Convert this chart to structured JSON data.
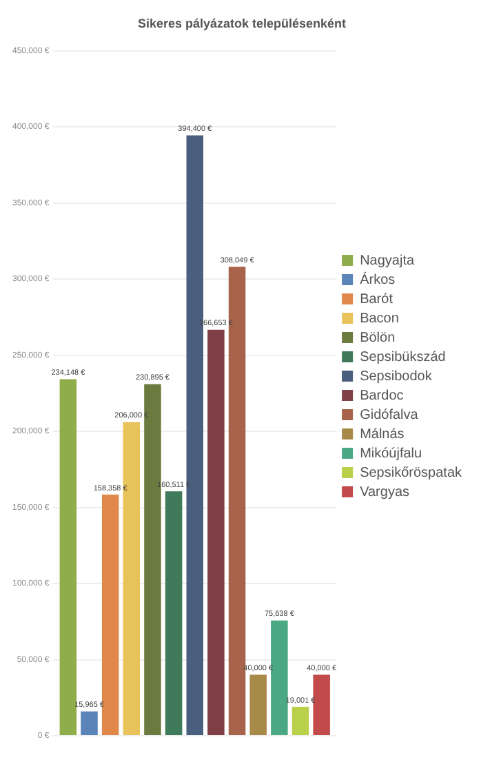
{
  "chart_data": {
    "type": "bar",
    "title": "Sikeres pályázatok településenként",
    "categories": [
      null
    ],
    "series": [
      {
        "name": "Nagyajta",
        "color": "#8fad4a",
        "values": [
          234148
        ],
        "value_labels": [
          "234,148 €"
        ]
      },
      {
        "name": "Árkos",
        "color": "#5b84b8",
        "values": [
          15965
        ],
        "value_labels": [
          "15,965 €"
        ]
      },
      {
        "name": "Barót",
        "color": "#e0874a",
        "values": [
          158358
        ],
        "value_labels": [
          "158,358 €"
        ]
      },
      {
        "name": "Bacon",
        "color": "#e8c25a",
        "values": [
          206000
        ],
        "value_labels": [
          "206,000 €"
        ]
      },
      {
        "name": "Bölön",
        "color": "#6b7a3e",
        "values": [
          230895
        ],
        "value_labels": [
          "230,895 €"
        ]
      },
      {
        "name": "Sepsibükszád",
        "color": "#3f7a5a",
        "values": [
          160511
        ],
        "value_labels": [
          "160,511 €"
        ]
      },
      {
        "name": "Sepsibodok",
        "color": "#4a5e7e",
        "values": [
          394400
        ],
        "value_labels": [
          "394,400 €"
        ]
      },
      {
        "name": "Bardoc",
        "color": "#7e4046",
        "values": [
          266653
        ],
        "value_labels": [
          "266,653 €"
        ]
      },
      {
        "name": "Gidófalva",
        "color": "#a8644a",
        "values": [
          308049
        ],
        "value_labels": [
          "308,049 €"
        ]
      },
      {
        "name": "Málnás",
        "color": "#a88a48",
        "values": [
          40000
        ],
        "value_labels": [
          "40,000 €"
        ]
      },
      {
        "name": "Mikóújfalu",
        "color": "#4aa884",
        "values": [
          75638
        ],
        "value_labels": [
          "75,638 €"
        ]
      },
      {
        "name": "Sepsikőröspatak",
        "color": "#b8d04a",
        "values": [
          19001
        ],
        "value_labels": [
          "19,001 €"
        ]
      },
      {
        "name": "Vargyas",
        "color": "#c24a4a",
        "values": [
          40000
        ],
        "value_labels": [
          "40,000 €"
        ]
      }
    ],
    "ylim": [
      0,
      450000
    ],
    "yticks": [
      {
        "value": 0,
        "label": "0 €"
      },
      {
        "value": 50000,
        "label": "50,000 €"
      },
      {
        "value": 100000,
        "label": "100,000 €"
      },
      {
        "value": 150000,
        "label": "150,000 €"
      },
      {
        "value": 200000,
        "label": "200,000 €"
      },
      {
        "value": 250000,
        "label": "250,000 €"
      },
      {
        "value": 300000,
        "label": "300,000 €"
      },
      {
        "value": 350000,
        "label": "350,000 €"
      },
      {
        "value": 400000,
        "label": "400,000 €"
      },
      {
        "value": 450000,
        "label": "450,000 €"
      }
    ],
    "grid": "y",
    "legend": "right",
    "tick_labels": "y"
  }
}
